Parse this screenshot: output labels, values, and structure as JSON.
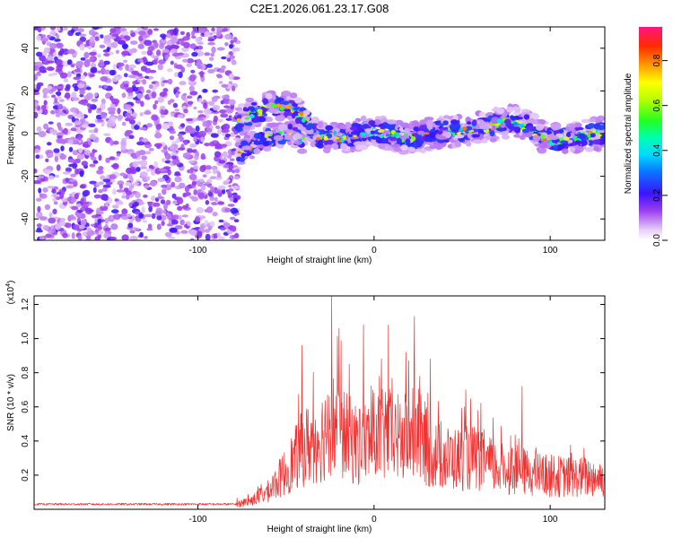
{
  "title": "C2E1.2026.061.23.17.G08",
  "chart_data": [
    {
      "type": "heatmap",
      "xlabel": "Height of straight line (km)",
      "ylabel": "Frequency (Hz)",
      "xlim": [
        -193,
        131
      ],
      "ylim": [
        -50,
        50
      ],
      "xticks": [
        -100,
        0,
        100
      ],
      "yticks": [
        -40,
        -20,
        0,
        20,
        40
      ],
      "colorbar": {
        "label": "Normalized spectral amplitude",
        "range": [
          0,
          0.95
        ],
        "ticks": [
          0.0,
          0.2,
          0.4,
          0.6,
          0.8
        ]
      },
      "noise_region_x": [
        -193,
        -77
      ],
      "signal_ridge": [
        [
          -77,
          6
        ],
        [
          -70,
          9
        ],
        [
          -62,
          11
        ],
        [
          -55,
          13
        ],
        [
          -48,
          12
        ],
        [
          -40,
          8
        ],
        [
          -32,
          -2
        ],
        [
          -24,
          -1
        ],
        [
          -16,
          -2
        ],
        [
          -8,
          0
        ],
        [
          0,
          1
        ],
        [
          8,
          0
        ],
        [
          16,
          -2
        ],
        [
          24,
          -2
        ],
        [
          32,
          0
        ],
        [
          40,
          1
        ],
        [
          48,
          1
        ],
        [
          56,
          2
        ],
        [
          64,
          3
        ],
        [
          72,
          5
        ],
        [
          80,
          6
        ],
        [
          88,
          3
        ],
        [
          96,
          -2
        ],
        [
          104,
          -3
        ],
        [
          112,
          -2
        ],
        [
          120,
          -1
        ],
        [
          128,
          0
        ],
        [
          131,
          0
        ]
      ],
      "secondary_ridge": [
        [
          -77,
          -10
        ],
        [
          -70,
          -6
        ],
        [
          -62,
          -2
        ],
        [
          -55,
          -1
        ],
        [
          -48,
          0
        ],
        [
          -40,
          -3
        ]
      ]
    },
    {
      "type": "line",
      "xlabel": "Height of straight line (km)",
      "ylabel": "SNR (10 * v/v)",
      "y_multiplier": "(x10",
      "y_multiplier_exp": "4",
      "y_multiplier_close": ")",
      "xlim": [
        -193,
        131
      ],
      "ylim": [
        0,
        12500
      ],
      "xticks": [
        -100,
        0,
        100
      ],
      "yticks": [
        2000,
        4000,
        6000,
        8000,
        10000,
        12000
      ],
      "ytick_labels": [
        "0.2",
        "0.4",
        "0.6",
        "0.8",
        "1.0",
        "1.2"
      ],
      "line_color": "#ee3333",
      "envelope": [
        [
          -193,
          300
        ],
        [
          -80,
          350
        ],
        [
          -70,
          700
        ],
        [
          -60,
          1500
        ],
        [
          -50,
          3200
        ],
        [
          -40,
          5200
        ],
        [
          -30,
          6000
        ],
        [
          -24,
          7200
        ],
        [
          -16,
          6000
        ],
        [
          -8,
          5300
        ],
        [
          0,
          6000
        ],
        [
          8,
          6200
        ],
        [
          16,
          5800
        ],
        [
          24,
          6400
        ],
        [
          32,
          4800
        ],
        [
          40,
          4300
        ],
        [
          48,
          4200
        ],
        [
          56,
          4300
        ],
        [
          64,
          3800
        ],
        [
          72,
          3400
        ],
        [
          80,
          3300
        ],
        [
          90,
          3000
        ],
        [
          100,
          2800
        ],
        [
          110,
          2700
        ],
        [
          120,
          2700
        ],
        [
          131,
          2600
        ]
      ],
      "spikes": [
        [
          -41,
          9600
        ],
        [
          -24,
          12500
        ],
        [
          -20,
          10600
        ],
        [
          -14,
          8500
        ],
        [
          -6,
          10800
        ],
        [
          8,
          10800
        ],
        [
          18,
          9200
        ],
        [
          23,
          11300
        ],
        [
          32,
          8800
        ],
        [
          52,
          7000
        ],
        [
          84,
          7200
        ]
      ],
      "baseline": 300
    }
  ]
}
